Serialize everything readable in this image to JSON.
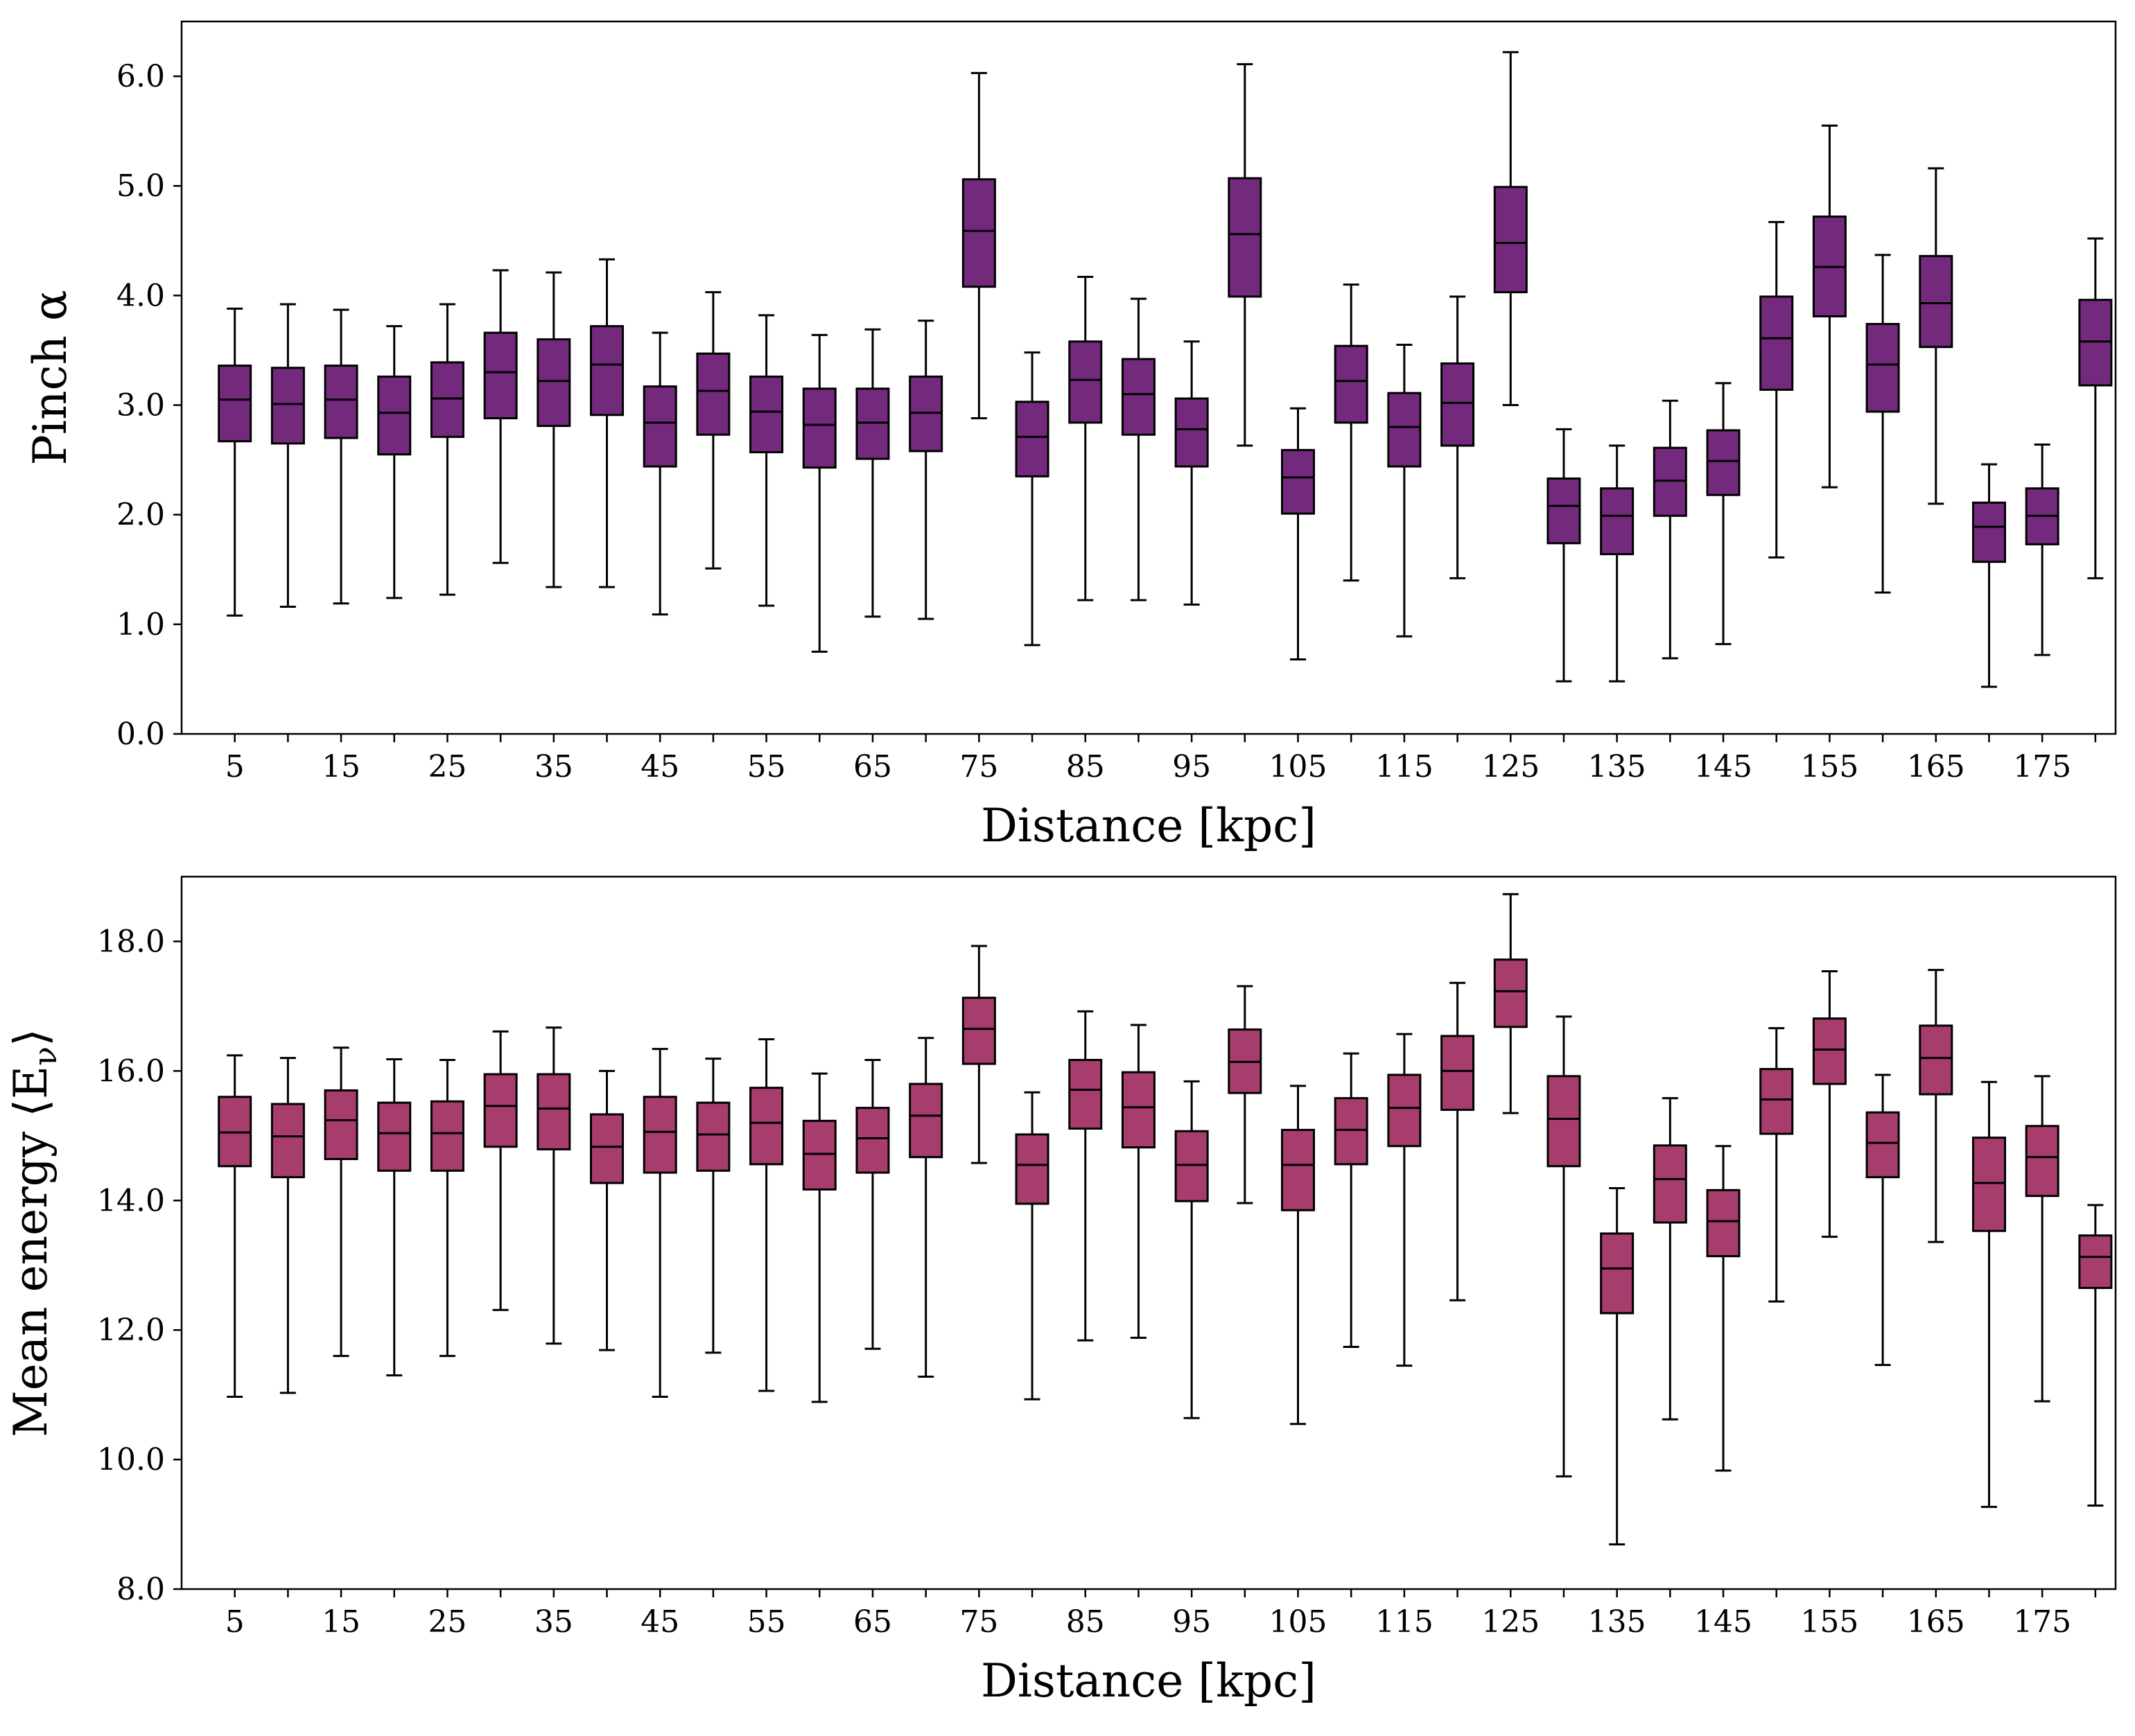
{
  "chart_data": [
    {
      "type": "box",
      "xlabel": "Distance [kpc]",
      "ylabel": "Pinch α",
      "ylim": [
        0,
        6.5
      ],
      "yticks": [
        "0.0",
        "1.0",
        "2.0",
        "3.0",
        "4.0",
        "5.0",
        "6.0"
      ],
      "xticks": [
        "5",
        "15",
        "25",
        "35",
        "45",
        "55",
        "65",
        "75",
        "85",
        "95",
        "105",
        "115",
        "125",
        "135",
        "145",
        "155",
        "165",
        "175"
      ],
      "box_color": "#742a7c",
      "grid": false,
      "boxes": [
        {
          "x": 5,
          "whisker_low": 1.08,
          "q1": 2.67,
          "median": 3.05,
          "q3": 3.36,
          "whisker_high": 3.88
        },
        {
          "x": 10,
          "whisker_low": 1.16,
          "q1": 2.65,
          "median": 3.01,
          "q3": 3.34,
          "whisker_high": 3.92
        },
        {
          "x": 15,
          "whisker_low": 1.19,
          "q1": 2.7,
          "median": 3.05,
          "q3": 3.36,
          "whisker_high": 3.87
        },
        {
          "x": 20,
          "whisker_low": 1.24,
          "q1": 2.55,
          "median": 2.93,
          "q3": 3.26,
          "whisker_high": 3.72
        },
        {
          "x": 25,
          "whisker_low": 1.27,
          "q1": 2.71,
          "median": 3.06,
          "q3": 3.39,
          "whisker_high": 3.92
        },
        {
          "x": 30,
          "whisker_low": 1.56,
          "q1": 2.88,
          "median": 3.3,
          "q3": 3.66,
          "whisker_high": 4.23
        },
        {
          "x": 35,
          "whisker_low": 1.34,
          "q1": 2.81,
          "median": 3.22,
          "q3": 3.6,
          "whisker_high": 4.21
        },
        {
          "x": 40,
          "whisker_low": 1.34,
          "q1": 2.91,
          "median": 3.37,
          "q3": 3.72,
          "whisker_high": 4.33
        },
        {
          "x": 45,
          "whisker_low": 1.09,
          "q1": 2.44,
          "median": 2.84,
          "q3": 3.17,
          "whisker_high": 3.66
        },
        {
          "x": 50,
          "whisker_low": 1.51,
          "q1": 2.73,
          "median": 3.13,
          "q3": 3.47,
          "whisker_high": 4.03
        },
        {
          "x": 55,
          "whisker_low": 1.17,
          "q1": 2.57,
          "median": 2.94,
          "q3": 3.26,
          "whisker_high": 3.82
        },
        {
          "x": 60,
          "whisker_low": 0.75,
          "q1": 2.43,
          "median": 2.82,
          "q3": 3.15,
          "whisker_high": 3.64
        },
        {
          "x": 65,
          "whisker_low": 1.07,
          "q1": 2.51,
          "median": 2.84,
          "q3": 3.15,
          "whisker_high": 3.69
        },
        {
          "x": 70,
          "whisker_low": 1.05,
          "q1": 2.58,
          "median": 2.93,
          "q3": 3.26,
          "whisker_high": 3.77
        },
        {
          "x": 75,
          "whisker_low": 2.88,
          "q1": 4.08,
          "median": 4.59,
          "q3": 5.06,
          "whisker_high": 6.03
        },
        {
          "x": 80,
          "whisker_low": 0.81,
          "q1": 2.35,
          "median": 2.71,
          "q3": 3.03,
          "whisker_high": 3.48
        },
        {
          "x": 85,
          "whisker_low": 1.22,
          "q1": 2.84,
          "median": 3.23,
          "q3": 3.58,
          "whisker_high": 4.17
        },
        {
          "x": 90,
          "whisker_low": 1.22,
          "q1": 2.73,
          "median": 3.1,
          "q3": 3.42,
          "whisker_high": 3.97
        },
        {
          "x": 95,
          "whisker_low": 1.18,
          "q1": 2.44,
          "median": 2.78,
          "q3": 3.06,
          "whisker_high": 3.58
        },
        {
          "x": 100,
          "whisker_low": 2.63,
          "q1": 3.99,
          "median": 4.56,
          "q3": 5.07,
          "whisker_high": 6.11
        },
        {
          "x": 105,
          "whisker_low": 0.68,
          "q1": 2.01,
          "median": 2.34,
          "q3": 2.59,
          "whisker_high": 2.97
        },
        {
          "x": 110,
          "whisker_low": 1.4,
          "q1": 2.84,
          "median": 3.22,
          "q3": 3.54,
          "whisker_high": 4.1
        },
        {
          "x": 115,
          "whisker_low": 0.89,
          "q1": 2.44,
          "median": 2.8,
          "q3": 3.11,
          "whisker_high": 3.55
        },
        {
          "x": 120,
          "whisker_low": 1.42,
          "q1": 2.63,
          "median": 3.02,
          "q3": 3.38,
          "whisker_high": 3.99
        },
        {
          "x": 125,
          "whisker_low": 3.0,
          "q1": 4.03,
          "median": 4.48,
          "q3": 4.99,
          "whisker_high": 6.22
        },
        {
          "x": 130,
          "whisker_low": 0.48,
          "q1": 1.74,
          "median": 2.08,
          "q3": 2.33,
          "whisker_high": 2.78
        },
        {
          "x": 135,
          "whisker_low": 0.48,
          "q1": 1.64,
          "median": 1.99,
          "q3": 2.24,
          "whisker_high": 2.63
        },
        {
          "x": 140,
          "whisker_low": 0.69,
          "q1": 1.99,
          "median": 2.31,
          "q3": 2.61,
          "whisker_high": 3.04
        },
        {
          "x": 145,
          "whisker_low": 0.82,
          "q1": 2.18,
          "median": 2.49,
          "q3": 2.77,
          "whisker_high": 3.2
        },
        {
          "x": 150,
          "whisker_low": 1.61,
          "q1": 3.14,
          "median": 3.61,
          "q3": 3.99,
          "whisker_high": 4.67
        },
        {
          "x": 155,
          "whisker_low": 2.25,
          "q1": 3.81,
          "median": 4.26,
          "q3": 4.72,
          "whisker_high": 5.55
        },
        {
          "x": 160,
          "whisker_low": 1.29,
          "q1": 2.94,
          "median": 3.37,
          "q3": 3.74,
          "whisker_high": 4.37
        },
        {
          "x": 165,
          "whisker_low": 2.1,
          "q1": 3.53,
          "median": 3.93,
          "q3": 4.36,
          "whisker_high": 5.16
        },
        {
          "x": 170,
          "whisker_low": 0.43,
          "q1": 1.57,
          "median": 1.89,
          "q3": 2.11,
          "whisker_high": 2.46
        },
        {
          "x": 175,
          "whisker_low": 0.72,
          "q1": 1.73,
          "median": 1.99,
          "q3": 2.24,
          "whisker_high": 2.64
        },
        {
          "x": 180,
          "whisker_low": 1.42,
          "q1": 3.18,
          "median": 3.58,
          "q3": 3.96,
          "whisker_high": 4.52
        }
      ]
    },
    {
      "type": "box",
      "xlabel": "Distance [kpc]",
      "ylabel": "Mean energy ⟨E",
      "ylabel_sub": "ν",
      "ylabel_end": "⟩",
      "ylim": [
        8,
        19
      ],
      "yticks": [
        "8.0",
        "10.0",
        "12.0",
        "14.0",
        "16.0",
        "18.0"
      ],
      "xticks": [
        "5",
        "15",
        "25",
        "35",
        "45",
        "55",
        "65",
        "75",
        "85",
        "95",
        "105",
        "115",
        "125",
        "135",
        "145",
        "155",
        "165",
        "175"
      ],
      "box_color": "#a63d6c",
      "grid": false,
      "boxes": [
        {
          "x": 5,
          "whisker_low": 10.97,
          "q1": 14.53,
          "median": 15.05,
          "q3": 15.6,
          "whisker_high": 16.24
        },
        {
          "x": 10,
          "whisker_low": 11.03,
          "q1": 14.36,
          "median": 14.99,
          "q3": 15.49,
          "whisker_high": 16.2
        },
        {
          "x": 15,
          "whisker_low": 11.6,
          "q1": 14.64,
          "median": 15.24,
          "q3": 15.7,
          "whisker_high": 16.36
        },
        {
          "x": 20,
          "whisker_low": 11.3,
          "q1": 14.46,
          "median": 15.04,
          "q3": 15.51,
          "whisker_high": 16.18
        },
        {
          "x": 25,
          "whisker_low": 11.6,
          "q1": 14.46,
          "median": 15.04,
          "q3": 15.53,
          "whisker_high": 16.17
        },
        {
          "x": 30,
          "whisker_low": 12.31,
          "q1": 14.83,
          "median": 15.46,
          "q3": 15.95,
          "whisker_high": 16.61
        },
        {
          "x": 35,
          "whisker_low": 11.79,
          "q1": 14.79,
          "median": 15.42,
          "q3": 15.95,
          "whisker_high": 16.67
        },
        {
          "x": 40,
          "whisker_low": 11.69,
          "q1": 14.27,
          "median": 14.83,
          "q3": 15.33,
          "whisker_high": 16.0
        },
        {
          "x": 45,
          "whisker_low": 10.97,
          "q1": 14.43,
          "median": 15.06,
          "q3": 15.6,
          "whisker_high": 16.34
        },
        {
          "x": 50,
          "whisker_low": 11.65,
          "q1": 14.46,
          "median": 15.02,
          "q3": 15.51,
          "whisker_high": 16.19
        },
        {
          "x": 55,
          "whisker_low": 11.06,
          "q1": 14.56,
          "median": 15.2,
          "q3": 15.74,
          "whisker_high": 16.49
        },
        {
          "x": 60,
          "whisker_low": 10.89,
          "q1": 14.17,
          "median": 14.72,
          "q3": 15.23,
          "whisker_high": 15.96
        },
        {
          "x": 65,
          "whisker_low": 11.71,
          "q1": 14.43,
          "median": 14.96,
          "q3": 15.43,
          "whisker_high": 16.17
        },
        {
          "x": 70,
          "whisker_low": 11.28,
          "q1": 14.67,
          "median": 15.31,
          "q3": 15.8,
          "whisker_high": 16.51
        },
        {
          "x": 75,
          "whisker_low": 14.58,
          "q1": 16.11,
          "median": 16.65,
          "q3": 17.13,
          "whisker_high": 17.93
        },
        {
          "x": 80,
          "whisker_low": 10.93,
          "q1": 13.95,
          "median": 14.55,
          "q3": 15.02,
          "whisker_high": 15.67
        },
        {
          "x": 85,
          "whisker_low": 11.84,
          "q1": 15.11,
          "median": 15.71,
          "q3": 16.17,
          "whisker_high": 16.92
        },
        {
          "x": 90,
          "whisker_low": 11.88,
          "q1": 14.82,
          "median": 15.44,
          "q3": 15.98,
          "whisker_high": 16.71
        },
        {
          "x": 95,
          "whisker_low": 10.64,
          "q1": 13.99,
          "median": 14.55,
          "q3": 15.07,
          "whisker_high": 15.84
        },
        {
          "x": 100,
          "whisker_low": 13.96,
          "q1": 15.66,
          "median": 16.14,
          "q3": 16.64,
          "whisker_high": 17.31
        },
        {
          "x": 105,
          "whisker_low": 10.55,
          "q1": 13.85,
          "median": 14.55,
          "q3": 15.09,
          "whisker_high": 15.77
        },
        {
          "x": 110,
          "whisker_low": 11.74,
          "q1": 14.56,
          "median": 15.09,
          "q3": 15.58,
          "whisker_high": 16.27
        },
        {
          "x": 115,
          "whisker_low": 11.45,
          "q1": 14.84,
          "median": 15.43,
          "q3": 15.94,
          "whisker_high": 16.57
        },
        {
          "x": 120,
          "whisker_low": 12.46,
          "q1": 15.4,
          "median": 16.0,
          "q3": 16.54,
          "whisker_high": 17.36
        },
        {
          "x": 125,
          "whisker_low": 15.35,
          "q1": 16.68,
          "median": 17.23,
          "q3": 17.72,
          "whisker_high": 18.73
        },
        {
          "x": 130,
          "whisker_low": 9.74,
          "q1": 14.53,
          "median": 15.26,
          "q3": 15.92,
          "whisker_high": 16.84
        },
        {
          "x": 135,
          "whisker_low": 8.69,
          "q1": 12.26,
          "median": 12.95,
          "q3": 13.49,
          "whisker_high": 14.19
        },
        {
          "x": 140,
          "whisker_low": 10.62,
          "q1": 13.66,
          "median": 14.33,
          "q3": 14.85,
          "whisker_high": 15.58
        },
        {
          "x": 145,
          "whisker_low": 9.83,
          "q1": 13.14,
          "median": 13.68,
          "q3": 14.16,
          "whisker_high": 14.84
        },
        {
          "x": 150,
          "whisker_low": 12.44,
          "q1": 15.03,
          "median": 15.56,
          "q3": 16.03,
          "whisker_high": 16.66
        },
        {
          "x": 155,
          "whisker_low": 13.44,
          "q1": 15.8,
          "median": 16.33,
          "q3": 16.81,
          "whisker_high": 17.54
        },
        {
          "x": 160,
          "whisker_low": 11.46,
          "q1": 14.36,
          "median": 14.89,
          "q3": 15.36,
          "whisker_high": 15.94
        },
        {
          "x": 165,
          "whisker_low": 13.36,
          "q1": 15.64,
          "median": 16.2,
          "q3": 16.7,
          "whisker_high": 17.56
        },
        {
          "x": 170,
          "whisker_low": 9.27,
          "q1": 13.53,
          "median": 14.27,
          "q3": 14.97,
          "whisker_high": 15.83
        },
        {
          "x": 175,
          "whisker_low": 10.9,
          "q1": 14.07,
          "median": 14.67,
          "q3": 15.15,
          "whisker_high": 15.92
        },
        {
          "x": 180,
          "whisker_low": 9.29,
          "q1": 12.65,
          "median": 13.13,
          "q3": 13.46,
          "whisker_high": 13.93
        }
      ]
    }
  ]
}
